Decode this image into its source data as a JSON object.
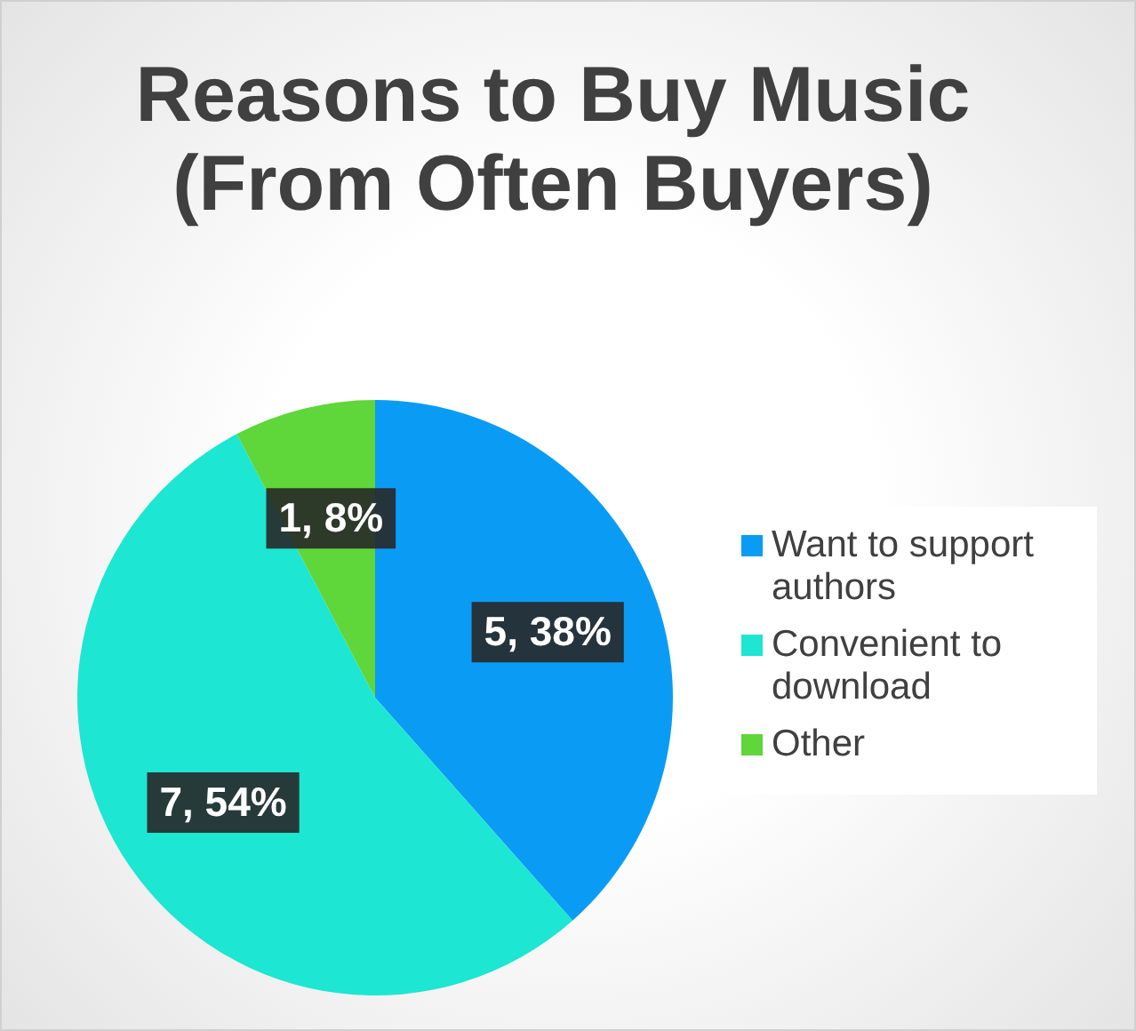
{
  "chart_data": {
    "type": "pie",
    "title": "Reasons to Buy Music (From Often Buyers)",
    "categories": [
      "Want to support authors",
      "Convenient to download",
      "Other"
    ],
    "values": [
      5,
      7,
      1
    ],
    "colors": [
      "#0a9cf5",
      "#1de6d2",
      "#5fd63a"
    ],
    "value_labels": [
      "5, 38%",
      "7, 54%",
      "1, 8%"
    ],
    "legend": "right"
  }
}
